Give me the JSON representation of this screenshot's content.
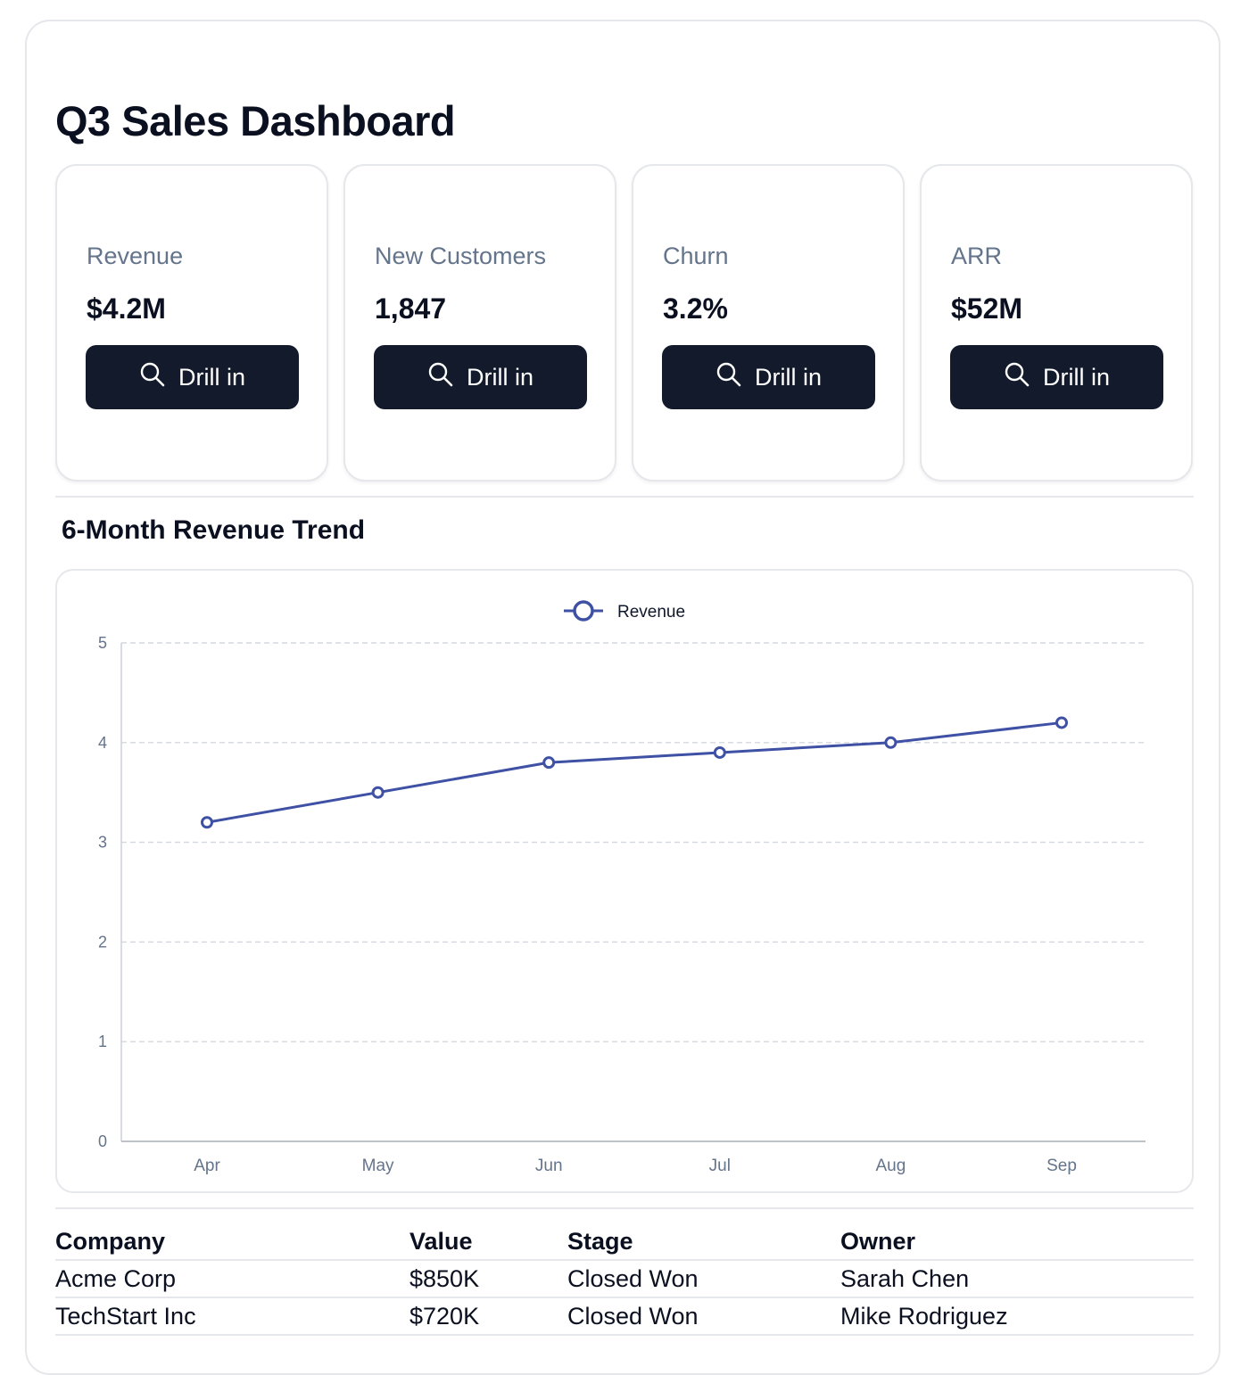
{
  "page": {
    "title": "Q3 Sales Dashboard"
  },
  "kpis": [
    {
      "label": "Revenue",
      "value": "$4.2M",
      "button_label": "Drill in"
    },
    {
      "label": "New Customers",
      "value": "1,847",
      "button_label": "Drill in"
    },
    {
      "label": "Churn",
      "value": "3.2%",
      "button_label": "Drill in"
    },
    {
      "label": "ARR",
      "value": "$52M",
      "button_label": "Drill in"
    }
  ],
  "trend": {
    "title": "6-Month Revenue Trend"
  },
  "chart_data": {
    "type": "line",
    "categories": [
      "Apr",
      "May",
      "Jun",
      "Jul",
      "Aug",
      "Sep"
    ],
    "series": [
      {
        "name": "Revenue",
        "values": [
          3.2,
          3.5,
          3.8,
          3.9,
          4.0,
          4.2
        ],
        "color": "#3f51a5"
      }
    ],
    "yticks": [
      0,
      1,
      2,
      3,
      4,
      5
    ],
    "ylim": [
      0,
      5
    ],
    "grid": true,
    "legend": "top-center",
    "xlabel": "",
    "ylabel": ""
  },
  "deals_table": {
    "columns": [
      "Company",
      "Value",
      "Stage",
      "Owner"
    ],
    "rows": [
      [
        "Acme Corp",
        "$850K",
        "Closed Won",
        "Sarah Chen"
      ],
      [
        "TechStart Inc",
        "$720K",
        "Closed Won",
        "Mike Rodriguez"
      ]
    ]
  },
  "colors": {
    "button": "#121a2c",
    "line": "#3f51a5",
    "muted": "#64748b"
  }
}
